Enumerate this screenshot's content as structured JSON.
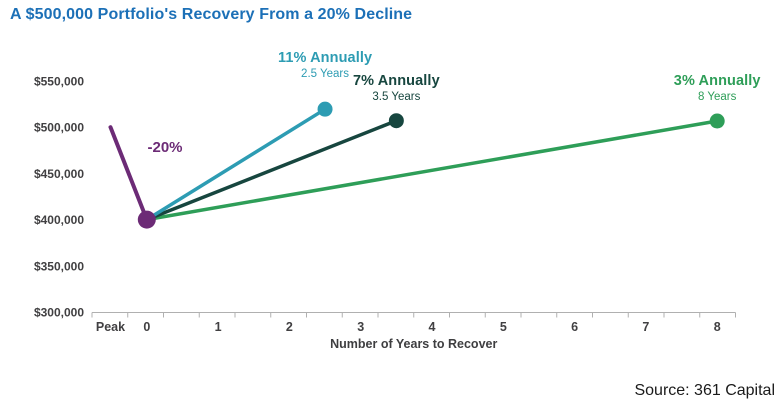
{
  "title": {
    "text": "A $500,000 Portfolio's Recovery From a 20% Decline",
    "color": "#1C70B7"
  },
  "source": {
    "text": "Source: 361 Capital"
  },
  "colors": {
    "axis_gray": "#B0B0B0",
    "tick_label": "#414042",
    "axis_title": "#3E3E40"
  },
  "chart_data": {
    "type": "line",
    "title": "A $500,000 Portfolio's Recovery From a 20% Decline",
    "xlabel": "Number of Years to Recover",
    "ylabel": "",
    "ylim": [
      300000,
      550000
    ],
    "grid": false,
    "legend": "none",
    "y_ticks": [
      {
        "label": "$550,000",
        "value": 550000
      },
      {
        "label": "$500,000",
        "value": 500000
      },
      {
        "label": "$450,000",
        "value": 450000
      },
      {
        "label": "$400,000",
        "value": 400000
      },
      {
        "label": "$350,000",
        "value": 350000
      },
      {
        "label": "$300,000",
        "value": 300000
      }
    ],
    "x_ticks": [
      {
        "label": "Peak",
        "x": "Peak"
      },
      {
        "label": "0",
        "x": 0
      },
      {
        "label": "1",
        "x": 1
      },
      {
        "label": "2",
        "x": 2
      },
      {
        "label": "3",
        "x": 3
      },
      {
        "label": "4",
        "x": 4
      },
      {
        "label": "5",
        "x": 5
      },
      {
        "label": "6",
        "x": 6
      },
      {
        "label": "7",
        "x": 7
      },
      {
        "label": "8",
        "x": 8
      }
    ],
    "series": [
      {
        "name": "decline",
        "label": "-20%",
        "sublabel": "",
        "color": "#6C2B76",
        "points": [
          {
            "x": "Peak",
            "y": 500000
          },
          {
            "x": 0,
            "y": 400000
          }
        ]
      },
      {
        "name": "recovery-11pct",
        "label": "11% Annually",
        "sublabel": "2.5 Years",
        "color": "#2D9CB3",
        "points": [
          {
            "x": 0,
            "y": 400000
          },
          {
            "x": 2.5,
            "y": 519500
          }
        ]
      },
      {
        "name": "recovery-7pct",
        "label": "7% Annually",
        "sublabel": "3.5 Years",
        "color": "#17463F",
        "points": [
          {
            "x": 0,
            "y": 400000
          },
          {
            "x": 3.5,
            "y": 507000
          }
        ]
      },
      {
        "name": "recovery-3pct",
        "label": "3% Annually",
        "sublabel": "8 Years",
        "color": "#2E9E58",
        "points": [
          {
            "x": 0,
            "y": 400000
          },
          {
            "x": 8,
            "y": 506700
          }
        ]
      }
    ]
  }
}
